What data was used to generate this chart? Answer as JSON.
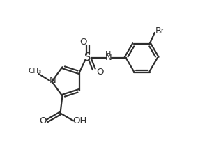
{
  "bg_color": "#ffffff",
  "line_color": "#2d2d2d",
  "line_width": 1.6,
  "figsize": [
    2.97,
    2.34
  ],
  "dpi": 100,
  "xlim": [
    0,
    10
  ],
  "ylim": [
    0,
    8
  ]
}
